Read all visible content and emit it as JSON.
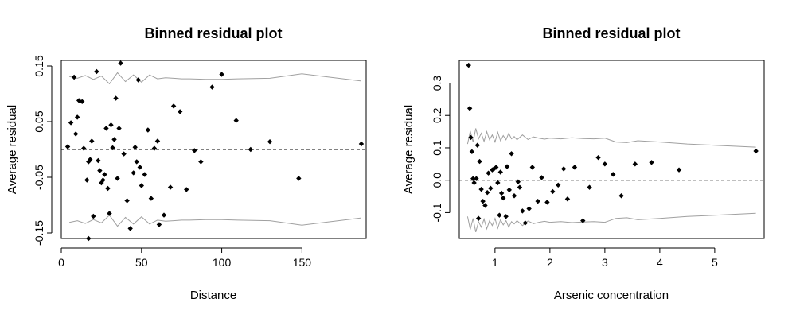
{
  "chart_data": [
    {
      "type": "scatter",
      "title": "Binned residual plot",
      "xlabel": "Distance",
      "ylabel": "Average residual",
      "xlim": [
        0,
        190
      ],
      "ylim": [
        -0.16,
        0.16
      ],
      "xticks": [
        0,
        50,
        100,
        150
      ],
      "yticks": [
        -0.15,
        -0.05,
        0.05,
        0.15
      ],
      "reference_line": 0,
      "grid": false,
      "points": [
        {
          "x": 4,
          "y": 0.005
        },
        {
          "x": 6,
          "y": 0.048
        },
        {
          "x": 8,
          "y": 0.13
        },
        {
          "x": 9,
          "y": 0.028
        },
        {
          "x": 10,
          "y": 0.058
        },
        {
          "x": 11,
          "y": 0.088
        },
        {
          "x": 13,
          "y": 0.086
        },
        {
          "x": 14,
          "y": 0.002
        },
        {
          "x": 16,
          "y": -0.055
        },
        {
          "x": 17,
          "y": -0.022
        },
        {
          "x": 17,
          "y": -0.16
        },
        {
          "x": 18,
          "y": -0.018
        },
        {
          "x": 19,
          "y": 0.015
        },
        {
          "x": 20,
          "y": -0.12
        },
        {
          "x": 22,
          "y": 0.14
        },
        {
          "x": 23,
          "y": -0.02
        },
        {
          "x": 24,
          "y": -0.038
        },
        {
          "x": 25,
          "y": -0.06
        },
        {
          "x": 26,
          "y": -0.055
        },
        {
          "x": 27,
          "y": -0.045
        },
        {
          "x": 28,
          "y": 0.038
        },
        {
          "x": 29,
          "y": -0.07
        },
        {
          "x": 30,
          "y": -0.115
        },
        {
          "x": 31,
          "y": 0.044
        },
        {
          "x": 32,
          "y": 0.003
        },
        {
          "x": 33,
          "y": 0.018
        },
        {
          "x": 34,
          "y": 0.092
        },
        {
          "x": 35,
          "y": -0.052
        },
        {
          "x": 36,
          "y": 0.038
        },
        {
          "x": 37,
          "y": 0.155
        },
        {
          "x": 39,
          "y": -0.008
        },
        {
          "x": 41,
          "y": -0.092
        },
        {
          "x": 43,
          "y": -0.142
        },
        {
          "x": 45,
          "y": -0.042
        },
        {
          "x": 46,
          "y": 0.004
        },
        {
          "x": 47,
          "y": -0.022
        },
        {
          "x": 48,
          "y": 0.125
        },
        {
          "x": 49,
          "y": -0.032
        },
        {
          "x": 50,
          "y": -0.065
        },
        {
          "x": 52,
          "y": -0.045
        },
        {
          "x": 54,
          "y": 0.035
        },
        {
          "x": 56,
          "y": -0.088
        },
        {
          "x": 58,
          "y": 0.002
        },
        {
          "x": 60,
          "y": 0.015
        },
        {
          "x": 61,
          "y": -0.135
        },
        {
          "x": 64,
          "y": -0.118
        },
        {
          "x": 68,
          "y": -0.068
        },
        {
          "x": 70,
          "y": 0.078
        },
        {
          "x": 74,
          "y": 0.068
        },
        {
          "x": 78,
          "y": -0.072
        },
        {
          "x": 83,
          "y": -0.002
        },
        {
          "x": 87,
          "y": -0.022
        },
        {
          "x": 94,
          "y": 0.112
        },
        {
          "x": 100,
          "y": 0.135
        },
        {
          "x": 109,
          "y": 0.052
        },
        {
          "x": 118,
          "y": 0.0
        },
        {
          "x": 130,
          "y": 0.014
        },
        {
          "x": 148,
          "y": -0.052
        },
        {
          "x": 187,
          "y": 0.01
        }
      ],
      "bounds_x": [
        5,
        10,
        15,
        20,
        25,
        30,
        35,
        40,
        45,
        50,
        55,
        60,
        65,
        70,
        75,
        80,
        90,
        100,
        110,
        130,
        150,
        187
      ],
      "bounds_upper": [
        0.131,
        0.128,
        0.133,
        0.126,
        0.132,
        0.118,
        0.138,
        0.122,
        0.134,
        0.121,
        0.134,
        0.127,
        0.129,
        0.128,
        0.127,
        0.127,
        0.126,
        0.126,
        0.127,
        0.128,
        0.136,
        0.123
      ],
      "bounds_lower": [
        -0.131,
        -0.128,
        -0.133,
        -0.126,
        -0.132,
        -0.118,
        -0.138,
        -0.122,
        -0.134,
        -0.121,
        -0.134,
        -0.127,
        -0.129,
        -0.128,
        -0.127,
        -0.127,
        -0.126,
        -0.126,
        -0.127,
        -0.128,
        -0.136,
        -0.123
      ]
    },
    {
      "type": "scatter",
      "title": "Binned residual plot",
      "xlabel": "Arsenic concentration",
      "ylabel": "Average residual",
      "xlim": [
        0.35,
        5.9
      ],
      "ylim": [
        -0.18,
        0.37
      ],
      "xticks": [
        1,
        2,
        3,
        4,
        5
      ],
      "yticks": [
        -0.1,
        0.0,
        0.1,
        0.2,
        0.3
      ],
      "reference_line": 0,
      "grid": false,
      "points": [
        {
          "x": 0.52,
          "y": 0.355
        },
        {
          "x": 0.54,
          "y": 0.222
        },
        {
          "x": 0.56,
          "y": 0.132
        },
        {
          "x": 0.58,
          "y": 0.088
        },
        {
          "x": 0.6,
          "y": 0.005
        },
        {
          "x": 0.62,
          "y": -0.008
        },
        {
          "x": 0.66,
          "y": 0.005
        },
        {
          "x": 0.68,
          "y": 0.108
        },
        {
          "x": 0.7,
          "y": -0.118
        },
        {
          "x": 0.72,
          "y": 0.058
        },
        {
          "x": 0.75,
          "y": -0.028
        },
        {
          "x": 0.78,
          "y": -0.065
        },
        {
          "x": 0.82,
          "y": -0.078
        },
        {
          "x": 0.86,
          "y": -0.038
        },
        {
          "x": 0.88,
          "y": 0.022
        },
        {
          "x": 0.92,
          "y": -0.025
        },
        {
          "x": 0.95,
          "y": 0.032
        },
        {
          "x": 0.98,
          "y": 0.035
        },
        {
          "x": 1.02,
          "y": 0.04
        },
        {
          "x": 1.05,
          "y": -0.008
        },
        {
          "x": 1.08,
          "y": -0.108
        },
        {
          "x": 1.1,
          "y": 0.025
        },
        {
          "x": 1.12,
          "y": -0.04
        },
        {
          "x": 1.15,
          "y": -0.055
        },
        {
          "x": 1.2,
          "y": -0.112
        },
        {
          "x": 1.22,
          "y": 0.042
        },
        {
          "x": 1.26,
          "y": -0.03
        },
        {
          "x": 1.3,
          "y": 0.082
        },
        {
          "x": 1.35,
          "y": -0.048
        },
        {
          "x": 1.42,
          "y": -0.005
        },
        {
          "x": 1.45,
          "y": -0.022
        },
        {
          "x": 1.5,
          "y": -0.095
        },
        {
          "x": 1.55,
          "y": -0.132
        },
        {
          "x": 1.62,
          "y": -0.088
        },
        {
          "x": 1.68,
          "y": 0.04
        },
        {
          "x": 1.78,
          "y": -0.065
        },
        {
          "x": 1.85,
          "y": 0.008
        },
        {
          "x": 1.95,
          "y": -0.068
        },
        {
          "x": 2.05,
          "y": -0.035
        },
        {
          "x": 2.15,
          "y": -0.015
        },
        {
          "x": 2.25,
          "y": 0.035
        },
        {
          "x": 2.32,
          "y": -0.058
        },
        {
          "x": 2.45,
          "y": 0.04
        },
        {
          "x": 2.6,
          "y": -0.125
        },
        {
          "x": 2.72,
          "y": -0.022
        },
        {
          "x": 2.88,
          "y": 0.07
        },
        {
          "x": 3.0,
          "y": 0.05
        },
        {
          "x": 3.15,
          "y": 0.018
        },
        {
          "x": 3.3,
          "y": -0.048
        },
        {
          "x": 3.55,
          "y": 0.05
        },
        {
          "x": 3.85,
          "y": 0.055
        },
        {
          "x": 4.35,
          "y": 0.032
        },
        {
          "x": 5.75,
          "y": 0.09
        }
      ],
      "bounds_x": [
        0.5,
        0.55,
        0.6,
        0.65,
        0.7,
        0.75,
        0.8,
        0.85,
        0.9,
        0.95,
        1.0,
        1.05,
        1.1,
        1.15,
        1.2,
        1.25,
        1.3,
        1.35,
        1.4,
        1.5,
        1.6,
        1.7,
        1.8,
        1.9,
        2.0,
        2.2,
        2.4,
        2.6,
        2.8,
        3.0,
        3.2,
        3.4,
        3.6,
        4.0,
        4.5,
        5.0,
        5.75
      ],
      "bounds_upper": [
        0.112,
        0.152,
        0.118,
        0.16,
        0.128,
        0.145,
        0.12,
        0.15,
        0.125,
        0.14,
        0.118,
        0.148,
        0.122,
        0.138,
        0.125,
        0.145,
        0.128,
        0.135,
        0.125,
        0.14,
        0.126,
        0.134,
        0.13,
        0.127,
        0.13,
        0.128,
        0.131,
        0.129,
        0.128,
        0.13,
        0.118,
        0.116,
        0.122,
        0.118,
        0.112,
        0.108,
        0.102
      ],
      "bounds_lower": [
        -0.112,
        -0.152,
        -0.118,
        -0.16,
        -0.128,
        -0.145,
        -0.12,
        -0.15,
        -0.125,
        -0.14,
        -0.118,
        -0.148,
        -0.122,
        -0.138,
        -0.125,
        -0.145,
        -0.128,
        -0.135,
        -0.125,
        -0.14,
        -0.126,
        -0.134,
        -0.13,
        -0.127,
        -0.13,
        -0.128,
        -0.131,
        -0.129,
        -0.128,
        -0.13,
        -0.118,
        -0.116,
        -0.122,
        -0.118,
        -0.112,
        -0.108,
        -0.102
      ]
    }
  ],
  "colors": {
    "points": "#000000",
    "bounds": "#a0a0a0",
    "axes": "#000000",
    "reference_line": "#000000"
  }
}
